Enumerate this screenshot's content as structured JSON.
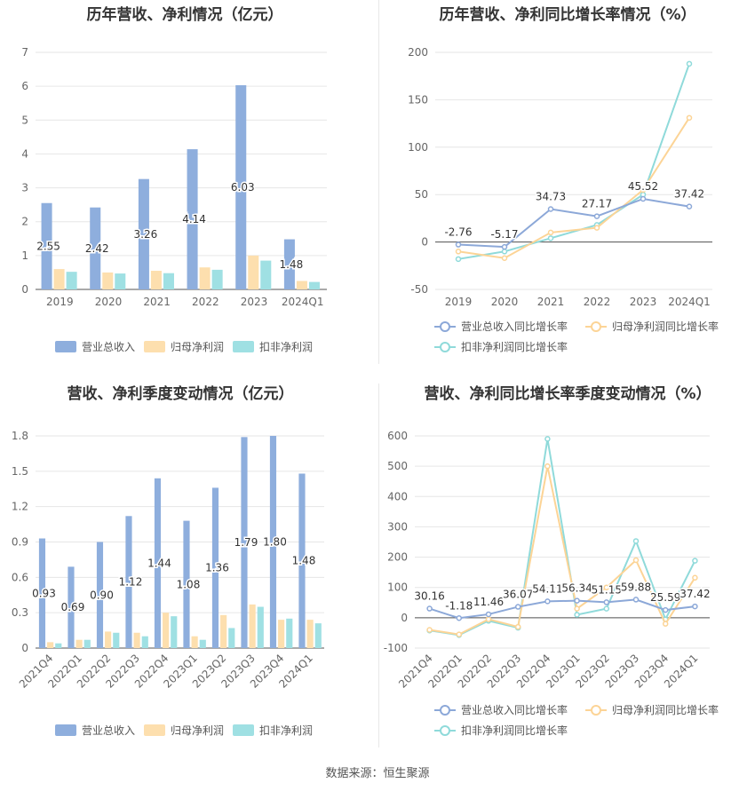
{
  "colors": {
    "revenue": "#8eaedd",
    "netprofit": "#fddfae",
    "deducted": "#9fe0e3",
    "revenue_line": "#8ca8d8",
    "netprofit_line": "#fcd496",
    "deducted_line": "#8fdada"
  },
  "footer": {
    "source": "数据来源：恒生聚源"
  },
  "chart_data": [
    {
      "type": "bar",
      "title": "历年营收、净利情况（亿元）",
      "categories": [
        "2019",
        "2020",
        "2021",
        "2022",
        "2023",
        "2024Q1"
      ],
      "ylim": [
        0,
        7
      ],
      "yticks": [
        0,
        1,
        2,
        3,
        4,
        5,
        6,
        7
      ],
      "series": [
        {
          "name": "营业总收入",
          "values": [
            2.55,
            2.42,
            3.26,
            4.14,
            6.03,
            1.48
          ],
          "labels": [
            "2.55",
            "2.42",
            "3.26",
            "4.14",
            "6.03",
            "1.48"
          ]
        },
        {
          "name": "归母净利润",
          "values": [
            0.6,
            0.5,
            0.55,
            0.65,
            1.0,
            0.25
          ]
        },
        {
          "name": "扣非净利润",
          "values": [
            0.52,
            0.47,
            0.48,
            0.58,
            0.85,
            0.22
          ]
        }
      ],
      "legend": [
        "营业总收入",
        "归母净利润",
        "扣非净利润"
      ],
      "grid": true,
      "legend_position": "bottom"
    },
    {
      "type": "line",
      "title": "历年营收、净利同比增长率情况（%）",
      "categories": [
        "2019",
        "2020",
        "2021",
        "2022",
        "2023",
        "2024Q1"
      ],
      "ylim": [
        -50,
        200
      ],
      "yticks": [
        -50,
        0,
        50,
        100,
        150,
        200
      ],
      "series": [
        {
          "name": "营业总收入同比增长率",
          "values": [
            -2.76,
            -5.17,
            34.73,
            27.17,
            45.52,
            37.42
          ],
          "labels": [
            "-2.76",
            "-5.17",
            "34.73",
            "27.17",
            "45.52",
            "37.42"
          ]
        },
        {
          "name": "归母净利润同比增长率",
          "values": [
            -10,
            -17,
            10,
            15,
            55,
            131
          ]
        },
        {
          "name": "扣非净利润同比增长率",
          "values": [
            -18,
            -10,
            4,
            18,
            50,
            188
          ]
        }
      ],
      "legend": [
        "营业总收入同比增长率",
        "归母净利润同比增长率",
        "扣非净利润同比增长率"
      ],
      "grid": true,
      "legend_position": "bottom"
    },
    {
      "type": "bar",
      "title": "营收、净利季度变动情况（亿元）",
      "categories": [
        "2021Q4",
        "2022Q1",
        "2022Q2",
        "2022Q3",
        "2022Q4",
        "2023Q1",
        "2023Q2",
        "2023Q3",
        "2023Q4",
        "2024Q1"
      ],
      "ylim": [
        0,
        1.8
      ],
      "yticks": [
        "0",
        "0.3",
        "0.6",
        "0.9",
        "1.2",
        "1.5",
        "1.8"
      ],
      "series": [
        {
          "name": "营业总收入",
          "values": [
            0.93,
            0.69,
            0.9,
            1.12,
            1.44,
            1.08,
            1.36,
            1.79,
            1.8,
            1.48
          ],
          "labels": [
            "0.93",
            "0.69",
            "0.90",
            "1.12",
            "1.44",
            "1.08",
            "1.36",
            "1.79",
            "1.80",
            "1.48"
          ]
        },
        {
          "name": "归母净利润",
          "values": [
            0.05,
            0.07,
            0.14,
            0.13,
            0.3,
            0.1,
            0.28,
            0.37,
            0.24,
            0.24
          ]
        },
        {
          "name": "扣非净利润",
          "values": [
            0.04,
            0.07,
            0.13,
            0.1,
            0.27,
            0.07,
            0.17,
            0.35,
            0.25,
            0.21
          ]
        }
      ],
      "legend": [
        "营业总收入",
        "归母净利润",
        "扣非净利润"
      ],
      "grid": true,
      "legend_position": "bottom"
    },
    {
      "type": "line",
      "title": "营收、净利同比增长率季度变动情况（%）",
      "categories": [
        "2021Q4",
        "2022Q1",
        "2022Q2",
        "2022Q3",
        "2022Q4",
        "2023Q1",
        "2023Q2",
        "2023Q3",
        "2023Q4",
        "2024Q1"
      ],
      "ylim": [
        -100,
        600
      ],
      "yticks": [
        -100,
        0,
        100,
        200,
        300,
        400,
        500,
        600
      ],
      "series": [
        {
          "name": "营业总收入同比增长率",
          "values": [
            30.16,
            -1.18,
            11.46,
            36.07,
            54.11,
            56.34,
            51.15,
            59.88,
            25.59,
            37.42
          ],
          "labels": [
            "30.16",
            "-1.18",
            "11.46",
            "36.07",
            "54.11",
            "56.34",
            "51.15",
            "59.88",
            "25.59",
            "37.42"
          ]
        },
        {
          "name": "归母净利润同比增长率",
          "values": [
            -40,
            -55,
            -5,
            -30,
            500,
            30,
            100,
            190,
            -20,
            132
          ]
        },
        {
          "name": "扣非净利润同比增长率",
          "values": [
            -42,
            -57,
            -10,
            -33,
            590,
            10,
            30,
            253,
            -5,
            188
          ]
        }
      ],
      "legend": [
        "营业总收入同比增长率",
        "归母净利润同比增长率",
        "扣非净利润同比增长率"
      ],
      "grid": true,
      "legend_position": "bottom"
    }
  ]
}
